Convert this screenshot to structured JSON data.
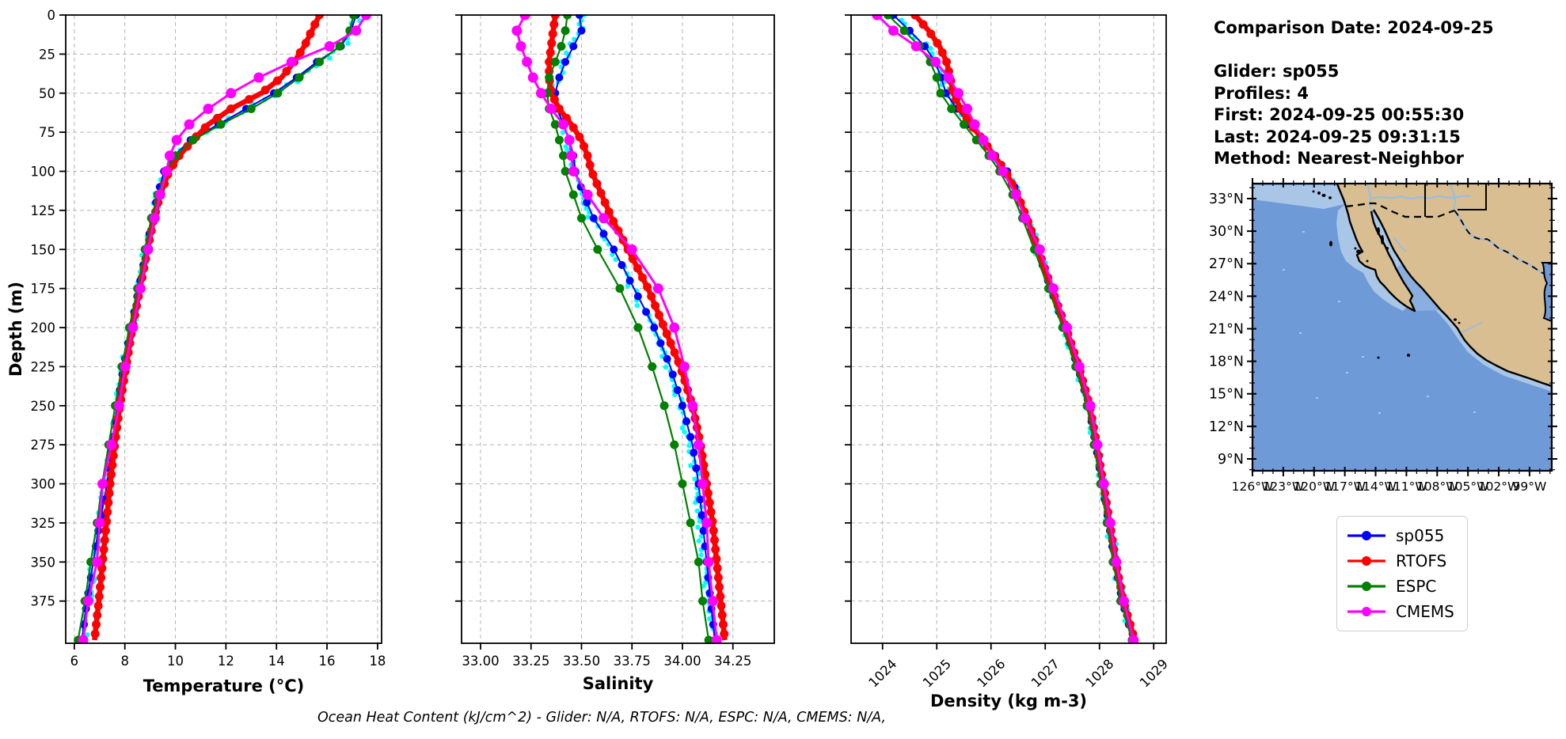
{
  "info_panel": {
    "lines": [
      "Comparison Date: 2024-09-25",
      "",
      "Glider: sp055",
      "Profiles: 4",
      "First: 2024-09-25 00:55:30",
      "Last: 2024-09-25 09:31:15",
      "Method: Nearest-Neighbor"
    ]
  },
  "legend": {
    "entries": [
      {
        "label": "sp055",
        "color": "#0000ff"
      },
      {
        "label": "RTOFS",
        "color": "#ff0000"
      },
      {
        "label": "ESPC",
        "color": "#008000"
      },
      {
        "label": "CMEMS",
        "color": "#ff00ff"
      }
    ]
  },
  "caption": "Ocean Heat Content (kJ/cm^2) - Glider: N/A,  RTOFS: N/A,  ESPC: N/A,  CMEMS: N/A,",
  "map": {
    "lat_labels": [
      "33°N",
      "30°N",
      "27°N",
      "24°N",
      "21°N",
      "18°N",
      "15°N",
      "12°N",
      "9°N"
    ],
    "lon_labels": [
      "126°W",
      "123°W",
      "120°W",
      "117°W",
      "114°W",
      "111°W",
      "108°W",
      "105°W",
      "102°W",
      "99°W"
    ],
    "colors": {
      "ocean": "#6f9ad8",
      "shelf": "#aac6e6",
      "land": "#d9be92",
      "river": "#94bde8",
      "coast": "#000000"
    }
  },
  "chart_data": [
    {
      "type": "line",
      "title": "",
      "xlabel": "Temperature (°C)",
      "ylabel": "Depth (m)",
      "xlim": [
        5.66,
        18.16
      ],
      "ylim": [
        0,
        402
      ],
      "grid": true,
      "xticks": [
        6,
        8,
        10,
        12,
        14,
        16,
        18
      ],
      "xtick_labels": [
        "6",
        "8",
        "10",
        "12",
        "14",
        "16",
        "18"
      ],
      "yticks": [
        0,
        25,
        50,
        75,
        100,
        125,
        150,
        175,
        200,
        225,
        250,
        275,
        300,
        325,
        350,
        375
      ],
      "show_ytick_labels": true,
      "rotate_xticks": false,
      "depths": [
        0,
        10,
        20,
        30,
        40,
        50,
        60,
        70,
        80,
        90,
        100,
        115,
        130,
        150,
        175,
        200,
        225,
        250,
        275,
        300,
        325,
        350,
        375,
        400
      ],
      "series": [
        {
          "name": "glider-raw",
          "color": "#00ffff",
          "values": [
            17.25,
            17.0,
            16.6,
            15.7,
            14.9,
            14.0,
            12.9,
            11.8,
            10.65,
            10.0,
            9.6,
            9.32,
            9.1,
            8.85,
            8.55,
            8.25,
            7.95,
            7.7,
            7.5,
            7.3,
            7.02,
            6.78,
            6.55,
            6.4
          ]
        },
        {
          "name": "sp055",
          "color": "#0000ff",
          "values": [
            17.15,
            16.95,
            16.55,
            15.6,
            14.8,
            13.9,
            12.8,
            11.7,
            10.6,
            9.95,
            9.55,
            9.3,
            9.1,
            8.85,
            8.55,
            8.25,
            7.95,
            7.7,
            7.5,
            7.3,
            7.0,
            6.75,
            6.5,
            6.3
          ]
        },
        {
          "name": "RTOFS",
          "color": "#ff0000",
          "values": [
            15.7,
            15.4,
            15.1,
            14.7,
            14.2,
            13.4,
            12.2,
            11.3,
            10.7,
            10.15,
            9.75,
            9.4,
            9.15,
            8.9,
            8.6,
            8.3,
            8.05,
            7.8,
            7.6,
            7.42,
            7.27,
            7.12,
            6.97,
            6.8
          ]
        },
        {
          "name": "ESPC",
          "color": "#008000",
          "values": [
            17.05,
            16.9,
            16.5,
            15.7,
            14.9,
            14.05,
            13.0,
            11.8,
            10.7,
            10.0,
            9.65,
            9.3,
            9.05,
            8.8,
            8.5,
            8.18,
            7.88,
            7.62,
            7.36,
            7.1,
            6.9,
            6.65,
            6.42,
            6.15
          ]
        },
        {
          "name": "CMEMS",
          "color": "#ff00ff",
          "values": [
            17.55,
            17.15,
            16.1,
            14.6,
            13.3,
            12.2,
            11.3,
            10.55,
            10.05,
            9.78,
            9.65,
            9.4,
            9.18,
            8.92,
            8.62,
            8.32,
            8.02,
            7.77,
            7.47,
            7.12,
            7.0,
            6.9,
            6.55,
            6.35
          ]
        }
      ]
    },
    {
      "type": "line",
      "title": "",
      "xlabel": "Salinity",
      "ylabel": "",
      "xlim": [
        32.906,
        34.455
      ],
      "ylim": [
        0,
        402
      ],
      "grid": true,
      "xticks": [
        33.0,
        33.25,
        33.5,
        33.75,
        34.0,
        34.25
      ],
      "xtick_labels": [
        "33.00",
        "33.25",
        "33.50",
        "33.75",
        "34.00",
        "34.25"
      ],
      "yticks": [
        0,
        25,
        50,
        75,
        100,
        125,
        150,
        175,
        200,
        225,
        250,
        275,
        300,
        325,
        350,
        375
      ],
      "show_ytick_labels": false,
      "rotate_xticks": false,
      "depths": [
        0,
        10,
        20,
        30,
        40,
        50,
        60,
        70,
        80,
        90,
        100,
        115,
        130,
        150,
        175,
        200,
        225,
        250,
        275,
        300,
        325,
        350,
        375,
        400
      ],
      "series": [
        {
          "name": "glider-raw",
          "color": "#00ffff",
          "values": [
            33.5,
            33.49,
            33.45,
            33.41,
            33.38,
            33.36,
            33.37,
            33.4,
            33.43,
            33.45,
            33.47,
            33.5,
            33.55,
            33.65,
            33.75,
            33.85,
            33.93,
            33.99,
            34.04,
            34.07,
            34.09,
            34.11,
            34.13,
            34.15
          ]
        },
        {
          "name": "sp055",
          "color": "#0000ff",
          "values": [
            33.49,
            33.5,
            33.46,
            33.42,
            33.39,
            33.37,
            33.38,
            33.41,
            33.44,
            33.46,
            33.47,
            33.51,
            33.56,
            33.66,
            33.76,
            33.86,
            33.94,
            34.0,
            34.05,
            34.08,
            34.1,
            34.12,
            34.14,
            34.16
          ]
        },
        {
          "name": "RTOFS",
          "color": "#ff0000",
          "values": [
            33.37,
            33.36,
            33.35,
            33.34,
            33.34,
            33.35,
            33.39,
            33.45,
            33.5,
            33.53,
            33.55,
            33.6,
            33.65,
            33.73,
            33.83,
            33.91,
            33.99,
            34.05,
            34.09,
            34.12,
            34.15,
            34.17,
            34.19,
            34.21
          ]
        },
        {
          "name": "ESPC",
          "color": "#008000",
          "values": [
            33.43,
            33.42,
            33.4,
            33.37,
            33.34,
            33.33,
            33.34,
            33.37,
            33.39,
            33.41,
            33.42,
            33.46,
            33.5,
            33.58,
            33.69,
            33.78,
            33.85,
            33.91,
            33.96,
            34.0,
            34.04,
            34.08,
            34.1,
            34.13
          ]
        },
        {
          "name": "CMEMS",
          "color": "#ff00ff",
          "values": [
            33.22,
            33.18,
            33.2,
            33.23,
            33.26,
            33.3,
            33.35,
            33.41,
            33.44,
            33.45,
            33.46,
            33.53,
            33.61,
            33.75,
            33.88,
            33.96,
            34.01,
            34.05,
            34.08,
            34.1,
            34.12,
            34.13,
            34.15,
            34.17
          ]
        }
      ]
    },
    {
      "type": "line",
      "title": "",
      "xlabel": "Density (kg m-3)",
      "ylabel": "",
      "xlim": [
        1023.42,
        1029.23
      ],
      "ylim": [
        0,
        402
      ],
      "grid": true,
      "xticks": [
        1024,
        1025,
        1026,
        1027,
        1028,
        1029
      ],
      "xtick_labels": [
        "1024",
        "1025",
        "1026",
        "1027",
        "1028",
        "1029"
      ],
      "yticks": [
        0,
        25,
        50,
        75,
        100,
        125,
        150,
        175,
        200,
        225,
        250,
        275,
        300,
        325,
        350,
        375
      ],
      "show_ytick_labels": false,
      "rotate_xticks": true,
      "depths": [
        0,
        10,
        20,
        30,
        40,
        50,
        60,
        70,
        80,
        90,
        100,
        115,
        130,
        150,
        175,
        200,
        225,
        250,
        275,
        300,
        325,
        350,
        375,
        400
      ],
      "series": [
        {
          "name": "glider-raw",
          "color": "#00ffff",
          "values": [
            1024.22,
            1024.52,
            1024.8,
            1024.98,
            1025.1,
            1025.18,
            1025.38,
            1025.6,
            1025.83,
            1026.07,
            1026.29,
            1026.5,
            1026.66,
            1026.86,
            1027.11,
            1027.37,
            1027.6,
            1027.8,
            1027.94,
            1028.06,
            1028.18,
            1028.29,
            1028.43,
            1028.6
          ]
        },
        {
          "name": "sp055",
          "color": "#0000ff",
          "values": [
            1024.2,
            1024.5,
            1024.78,
            1024.97,
            1025.08,
            1025.17,
            1025.37,
            1025.6,
            1025.83,
            1026.08,
            1026.3,
            1026.5,
            1026.65,
            1026.85,
            1027.1,
            1027.36,
            1027.6,
            1027.8,
            1027.93,
            1028.05,
            1028.17,
            1028.28,
            1028.42,
            1028.62
          ]
        },
        {
          "name": "RTOFS",
          "color": "#ff0000",
          "values": [
            1024.6,
            1024.85,
            1025.05,
            1025.18,
            1025.25,
            1025.3,
            1025.44,
            1025.63,
            1025.85,
            1026.06,
            1026.27,
            1026.49,
            1026.66,
            1026.87,
            1027.12,
            1027.38,
            1027.62,
            1027.82,
            1027.95,
            1028.07,
            1028.19,
            1028.3,
            1028.44,
            1028.65
          ]
        },
        {
          "name": "ESPC",
          "color": "#008000",
          "values": [
            1024.1,
            1024.4,
            1024.68,
            1024.88,
            1025.0,
            1025.07,
            1025.27,
            1025.5,
            1025.73,
            1025.96,
            1026.16,
            1026.4,
            1026.58,
            1026.8,
            1027.06,
            1027.32,
            1027.56,
            1027.77,
            1027.9,
            1028.02,
            1028.14,
            1028.25,
            1028.39,
            1028.6
          ]
        },
        {
          "name": "CMEMS",
          "color": "#ff00ff",
          "values": [
            1023.9,
            1024.2,
            1024.62,
            1024.98,
            1025.22,
            1025.4,
            1025.56,
            1025.7,
            1025.86,
            1026.02,
            1026.22,
            1026.46,
            1026.63,
            1026.9,
            1027.15,
            1027.4,
            1027.63,
            1027.83,
            1027.96,
            1028.08,
            1028.2,
            1028.31,
            1028.45,
            1028.63
          ]
        }
      ]
    }
  ]
}
